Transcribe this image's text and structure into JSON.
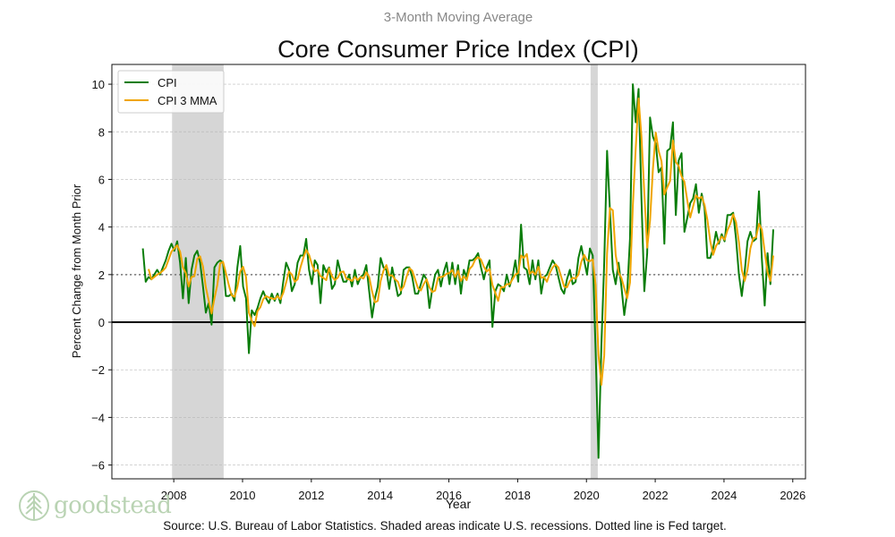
{
  "chart_data": {
    "type": "line",
    "subtitle": "3-Month Moving Average",
    "title": "Core Consumer Price Index (CPI)",
    "xlabel": "Year",
    "ylabel": "Percent Change from Month Prior",
    "source": "Source: U.S. Bureau of Labor Statistics. Shaded areas indicate U.S. recessions. Dotted line is Fed target.",
    "xlim": [
      2006.2,
      2026.37
    ],
    "ylim": [
      -6.58,
      10.83
    ],
    "xticks": [
      "2008",
      "2010",
      "2012",
      "2014",
      "2016",
      "2018",
      "2020",
      "2022",
      "2024",
      "2026"
    ],
    "yticks": [
      "-6",
      "-4",
      "-2",
      "0",
      "2",
      "4",
      "6",
      "8",
      "10"
    ],
    "grid": true,
    "legend_position": "top-left",
    "fed_target": 2,
    "recessions": [
      [
        2007.95,
        2009.45
      ],
      [
        2020.12,
        2020.33
      ]
    ],
    "start": [
      2007,
      1
    ],
    "series": [
      {
        "name": "CPI",
        "color": "#0a7d0a",
        "values": [
          3.1,
          1.7,
          1.9,
          1.8,
          2.0,
          2.2,
          2.0,
          2.3,
          2.6,
          3.0,
          3.3,
          3.0,
          3.4,
          2.5,
          1.0,
          2.7,
          0.8,
          2.2,
          2.8,
          3.0,
          2.5,
          1.5,
          0.4,
          0.8,
          -0.1,
          2.3,
          2.5,
          2.6,
          2.5,
          1.1,
          1.1,
          1.2,
          0.9,
          2.3,
          3.2,
          1.5,
          1.0,
          -1.3,
          0.5,
          0.3,
          0.6,
          1.0,
          1.3,
          1.0,
          0.8,
          1.2,
          0.9,
          1.2,
          0.8,
          1.7,
          2.5,
          2.2,
          1.3,
          1.6,
          2.5,
          2.8,
          2.8,
          3.5,
          2.2,
          1.6,
          2.6,
          2.4,
          0.8,
          2.4,
          2.1,
          2.3,
          1.4,
          1.6,
          2.6,
          2.1,
          1.7,
          1.7,
          2.0,
          1.5,
          2.2,
          1.6,
          1.9,
          2.0,
          2.4,
          1.3,
          0.2,
          1.0,
          1.5,
          2.7,
          2.3,
          2.2,
          1.4,
          2.3,
          1.7,
          1.1,
          1.2,
          2.2,
          2.3,
          2.3,
          1.9,
          1.2,
          1.2,
          1.6,
          2.0,
          1.8,
          0.6,
          1.4,
          2.0,
          2.2,
          1.5,
          2.1,
          2.5,
          1.6,
          2.5,
          1.6,
          2.4,
          1.2,
          2.2,
          1.9,
          2.6,
          2.6,
          2.7,
          2.9,
          2.3,
          1.8,
          2.3,
          2.6,
          -0.2,
          1.3,
          1.6,
          1.5,
          1.3,
          2.0,
          1.5,
          1.9,
          2.6,
          1.7,
          4.1,
          2.3,
          2.2,
          1.6,
          2.6,
          1.8,
          2.6,
          1.2,
          1.9,
          2.0,
          2.3,
          2.6,
          2.4,
          1.9,
          1.4,
          1.2,
          1.8,
          2.2,
          1.6,
          1.7,
          2.7,
          3.2,
          2.6,
          2.0,
          3.1,
          2.8,
          -1.2,
          -5.7,
          -1.0,
          2.5,
          7.2,
          4.7,
          2.2,
          1.6,
          2.5,
          1.5,
          0.3,
          1.2,
          3.5,
          10.0,
          8.4,
          9.8,
          5.2,
          1.3,
          2.9,
          8.6,
          7.8,
          7.5,
          6.3,
          6.5,
          3.3,
          7.2,
          7.3,
          8.4,
          4.5,
          6.8,
          7.1,
          3.8,
          4.4,
          5.0,
          5.2,
          5.8,
          4.6,
          5.4,
          4.8,
          2.7,
          2.7,
          3.1,
          3.8,
          3.3,
          3.7,
          3.4,
          4.5,
          4.5,
          4.6,
          3.5,
          2.0,
          1.1,
          2.1,
          3.4,
          3.8,
          3.4,
          3.5,
          5.5,
          2.7,
          0.7,
          2.9,
          1.6,
          3.9
        ]
      },
      {
        "name": "CPI 3 MMA",
        "color": "#f0a500",
        "window": 3
      }
    ]
  },
  "logo": {
    "text": "goodstead"
  }
}
